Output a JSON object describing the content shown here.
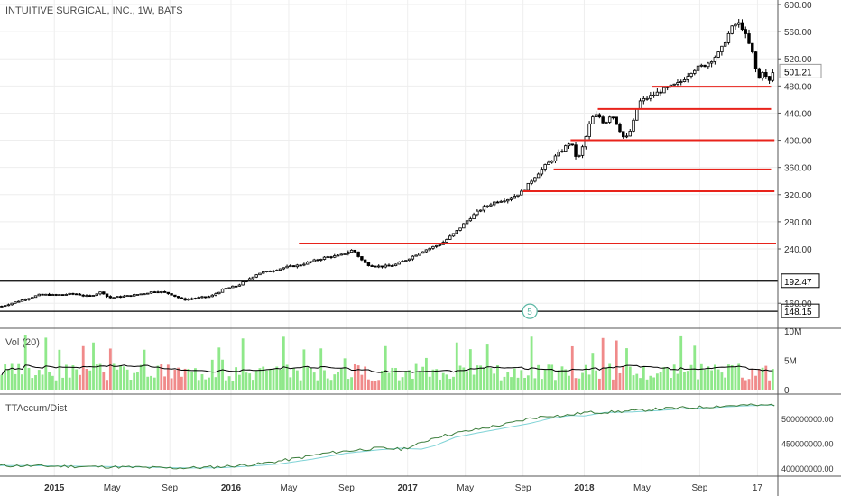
{
  "header": {
    "symbol_line": "INTUITIVE SURGICAL, INC., 1W, BATS"
  },
  "price_pane": {
    "y_ticks": [
      "600.00",
      "560.00",
      "520.00",
      "480.00",
      "440.00",
      "400.00",
      "360.00",
      "320.00",
      "280.00",
      "240.00",
      "160.00"
    ],
    "y_tick_values": [
      600,
      560,
      520,
      480,
      440,
      400,
      360,
      320,
      280,
      240,
      160
    ],
    "last_price_label": "501.21",
    "level_labels": [
      "192.47",
      "148.15"
    ],
    "marker_label": "5"
  },
  "volume_pane": {
    "label": "Vol (20)",
    "y_ticks": [
      "10M",
      "5M",
      "0"
    ]
  },
  "accum_pane": {
    "label": "TTAccum/Dist",
    "y_ticks": [
      "500000000.00",
      "450000000.00",
      "400000000.00"
    ]
  },
  "x_axis": {
    "ticks": [
      "2015",
      "May",
      "Sep",
      "2016",
      "May",
      "Sep",
      "2017",
      "May",
      "Sep",
      "2018",
      "May",
      "Sep",
      "17"
    ],
    "tick_weeks": [
      0,
      17,
      34,
      52,
      69,
      86,
      104,
      121,
      138,
      156,
      173,
      190,
      207
    ]
  },
  "colors": {
    "up": "#ffffff",
    "down": "#000000",
    "candle_outline": "#000000",
    "resistance_line": "#e8231b",
    "support_line": "#000000",
    "vol_up": "#8fe88a",
    "vol_down": "#f08a8a",
    "vol_ma": "#000000",
    "accum_line": "#3b7d3b",
    "accum_signal": "#7fd3d6",
    "marker": "#5cb8a5",
    "grid": "#eeeeee"
  },
  "chart_data": {
    "type": "candlestick",
    "title": "INTUITIVE SURGICAL, INC., 1W, BATS",
    "timeframe": "1W",
    "x_range_weeks": [
      -16,
      213
    ],
    "ylim": [
      130,
      610
    ],
    "price_path": [
      [
        -16,
        155
      ],
      [
        -10,
        164
      ],
      [
        -4,
        173
      ],
      [
        0,
        172
      ],
      [
        6,
        174
      ],
      [
        10,
        170
      ],
      [
        14,
        177
      ],
      [
        16,
        168
      ],
      [
        22,
        171
      ],
      [
        27,
        175
      ],
      [
        30,
        178
      ],
      [
        34,
        174
      ],
      [
        38,
        165
      ],
      [
        42,
        168
      ],
      [
        46,
        170
      ],
      [
        50,
        181
      ],
      [
        54,
        186
      ],
      [
        60,
        204
      ],
      [
        64,
        208
      ],
      [
        68,
        213
      ],
      [
        72,
        216
      ],
      [
        76,
        222
      ],
      [
        80,
        228
      ],
      [
        84,
        230
      ],
      [
        88,
        239
      ],
      [
        90,
        226
      ],
      [
        92,
        217
      ],
      [
        96,
        214
      ],
      [
        100,
        216
      ],
      [
        104,
        225
      ],
      [
        108,
        236
      ],
      [
        112,
        244
      ],
      [
        114,
        248
      ],
      [
        118,
        264
      ],
      [
        122,
        284
      ],
      [
        126,
        300
      ],
      [
        130,
        310
      ],
      [
        134,
        314
      ],
      [
        138,
        325
      ],
      [
        141,
        344
      ],
      [
        144,
        360
      ],
      [
        148,
        378
      ],
      [
        152,
        398
      ],
      [
        154,
        370
      ],
      [
        156,
        396
      ],
      [
        158,
        432
      ],
      [
        160,
        438
      ],
      [
        162,
        424
      ],
      [
        164,
        440
      ],
      [
        166,
        420
      ],
      [
        168,
        400
      ],
      [
        170,
        418
      ],
      [
        172,
        456
      ],
      [
        176,
        466
      ],
      [
        180,
        476
      ],
      [
        184,
        484
      ],
      [
        188,
        504
      ],
      [
        192,
        512
      ],
      [
        196,
        530
      ],
      [
        198,
        552
      ],
      [
        200,
        570
      ],
      [
        202,
        572
      ],
      [
        204,
        548
      ],
      [
        206,
        522
      ],
      [
        207,
        488
      ],
      [
        208,
        494
      ],
      [
        209,
        510
      ],
      [
        210,
        476
      ],
      [
        211,
        498
      ],
      [
        212,
        501
      ]
    ],
    "last_price": 501.21,
    "resistance_levels": [
      {
        "price": 248,
        "from_week": 72,
        "to_week": 213
      },
      {
        "price": 325,
        "from_week": 138,
        "to_week": 212
      },
      {
        "price": 357,
        "from_week": 147,
        "to_week": 211
      },
      {
        "price": 400,
        "from_week": 152,
        "to_week": 212
      },
      {
        "price": 446,
        "from_week": 160,
        "to_week": 211
      },
      {
        "price": 479,
        "from_week": 176,
        "to_week": 211
      }
    ],
    "support_levels": [
      {
        "price": 192.47,
        "label": "192.47"
      },
      {
        "price": 148.15,
        "label": "148.15"
      }
    ],
    "event_marker": {
      "week": 140,
      "label": "5"
    },
    "volume": {
      "label": "Vol (20)",
      "ylim": [
        0,
        10
      ],
      "unit": "M",
      "typical_range_m": [
        1,
        9
      ],
      "ma_level_m": 4
    },
    "accum_dist": {
      "label": "TTAccum/Dist",
      "ylim": [
        398000000,
        532000000
      ],
      "path": [
        [
          -16,
          405000000
        ],
        [
          10,
          403000000
        ],
        [
          20,
          402000000
        ],
        [
          34,
          400000000
        ],
        [
          44,
          401000000
        ],
        [
          52,
          404000000
        ],
        [
          60,
          408000000
        ],
        [
          70,
          418000000
        ],
        [
          80,
          430000000
        ],
        [
          90,
          437000000
        ],
        [
          96,
          440000000
        ],
        [
          102,
          438000000
        ],
        [
          106,
          445000000
        ],
        [
          112,
          462000000
        ],
        [
          118,
          470000000
        ],
        [
          126,
          480000000
        ],
        [
          134,
          490000000
        ],
        [
          140,
          500000000
        ],
        [
          146,
          506000000
        ],
        [
          150,
          505000000
        ],
        [
          156,
          512000000
        ],
        [
          164,
          513000000
        ],
        [
          172,
          516000000
        ],
        [
          180,
          520000000
        ],
        [
          188,
          522000000
        ],
        [
          196,
          525000000
        ],
        [
          204,
          527000000
        ],
        [
          208,
          526000000
        ],
        [
          212,
          528000000
        ]
      ]
    }
  }
}
